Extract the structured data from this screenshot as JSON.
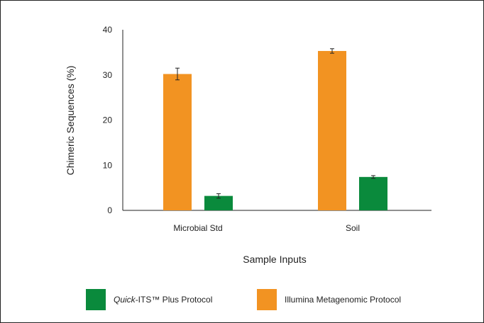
{
  "chart_data": {
    "type": "bar",
    "title": "",
    "xlabel": "Sample Inputs",
    "ylabel": "Chimeric Sequences (%)",
    "ylim": [
      0,
      40
    ],
    "yticks": [
      0,
      10,
      20,
      30,
      40
    ],
    "categories": [
      "Microbial Std",
      "Soil"
    ],
    "series": [
      {
        "name": "Illumina Metagenomic Protocol",
        "color": "#f29322",
        "values": [
          30.2,
          35.3
        ],
        "errors": [
          1.3,
          0.5
        ]
      },
      {
        "name": "Quick-ITS™ Plus Protocol",
        "color": "#0a8a3c",
        "values": [
          3.2,
          7.4
        ],
        "errors": [
          0.5,
          0.3
        ]
      }
    ],
    "legend": {
      "position": "bottom",
      "entries": [
        {
          "name_italic": "Quick",
          "name_rest": "-ITS™ Plus Protocol",
          "color": "#0a8a3c"
        },
        {
          "name_italic": "",
          "name_rest": "Illumina Metagenomic Protocol",
          "color": "#f29322"
        }
      ]
    },
    "grid": false
  }
}
